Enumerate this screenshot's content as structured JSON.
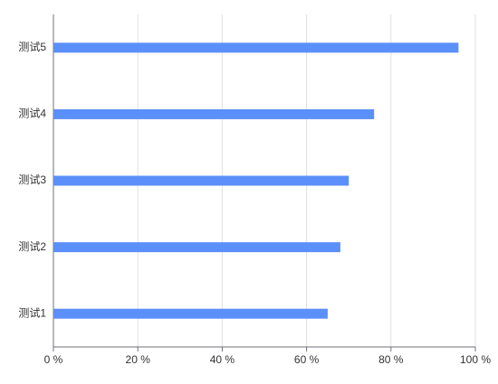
{
  "chart_data": {
    "type": "bar",
    "orientation": "horizontal",
    "categories": [
      "测试1",
      "测试2",
      "测试3",
      "测试4",
      "测试5"
    ],
    "values": [
      65,
      68,
      70,
      76,
      96
    ],
    "color": "#5b8ff9",
    "xlim": [
      0,
      100
    ],
    "xticks": [
      {
        "value": 0,
        "label": "0 %"
      },
      {
        "value": 20,
        "label": "20 %"
      },
      {
        "value": 40,
        "label": "40 %"
      },
      {
        "value": 60,
        "label": "60 %"
      },
      {
        "value": 80,
        "label": "80 %"
      },
      {
        "value": 100,
        "label": "100 %"
      }
    ],
    "grid": true
  }
}
